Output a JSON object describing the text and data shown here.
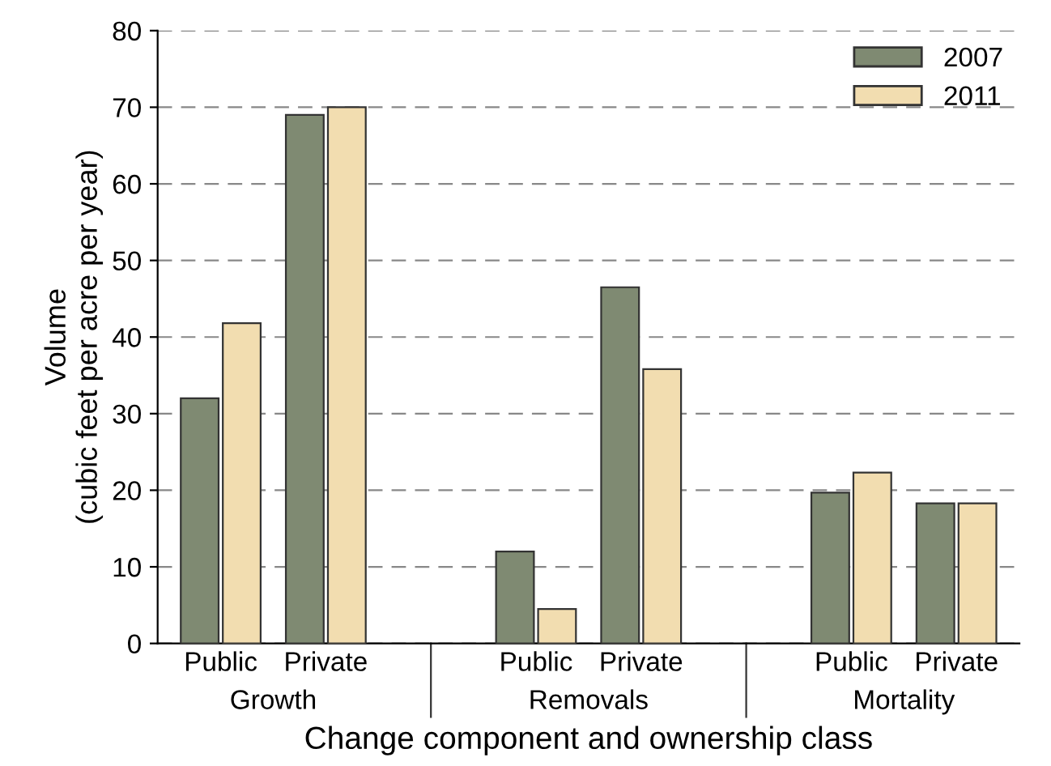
{
  "chart_data": {
    "type": "bar",
    "xlabel": "Change component and ownership class",
    "ylabel": "Volume\n(cubic feet per acre per year)",
    "categories": [
      "Public",
      "Private",
      null,
      "Public",
      "Private",
      null,
      "Public",
      "Private"
    ],
    "series": [
      {
        "name": "2007",
        "color": "#7f8a72",
        "values": [
          32,
          69,
          null,
          12,
          46.5,
          null,
          19.7,
          18.3
        ]
      },
      {
        "name": "2011",
        "color": "#f2ddb0",
        "values": [
          41.8,
          70,
          null,
          4.5,
          35.8,
          null,
          22.3,
          18.3
        ]
      }
    ],
    "annotations": [
      "Growth",
      "Removals",
      "Mortality"
    ],
    "ylim": [
      0,
      80
    ],
    "yticks": [
      0,
      10,
      20,
      30,
      40,
      50,
      60,
      70,
      80
    ],
    "grid": "y",
    "legend": "top right"
  }
}
